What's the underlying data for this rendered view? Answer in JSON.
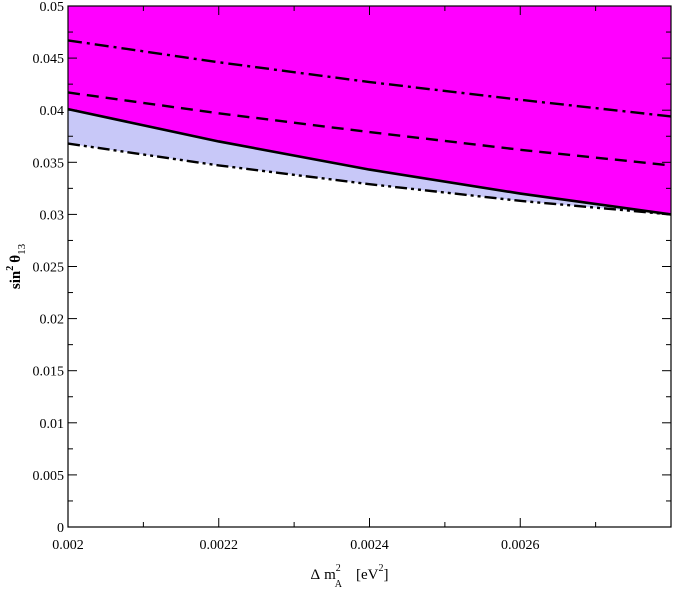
{
  "chart_data": {
    "type": "area",
    "xlim": [
      0.002,
      0.0028
    ],
    "ylim": [
      0,
      0.05
    ],
    "x_ticks": [
      "0.002",
      "0.0022",
      "0.0024",
      "0.0026"
    ],
    "x_tick_values": [
      0.002,
      0.0022,
      0.0024,
      0.0026
    ],
    "y_ticks": [
      "0",
      "0.005",
      "0.01",
      "0.015",
      "0.02",
      "0.025",
      "0.03",
      "0.035",
      "0.04",
      "0.045",
      "0.05"
    ],
    "y_tick_values": [
      0,
      0.005,
      0.01,
      0.015,
      0.02,
      0.025,
      0.03,
      0.035,
      0.04,
      0.045,
      0.05
    ],
    "grid": false,
    "colors": {
      "upper_region": "#ff00ff",
      "band_region": "#c8c8f8",
      "lines": "#000000"
    },
    "series": [
      {
        "style": "solid",
        "x": [
          0.002,
          0.0022,
          0.0024,
          0.0026,
          0.0028
        ],
        "y": [
          0.0401,
          0.037,
          0.0343,
          0.032,
          0.03
        ]
      },
      {
        "style": "dash-dot",
        "x": [
          0.002,
          0.0022,
          0.0024,
          0.0026,
          0.0028
        ],
        "y": [
          0.0467,
          0.0446,
          0.0427,
          0.041,
          0.0394
        ]
      },
      {
        "style": "dashed",
        "x": [
          0.002,
          0.0022,
          0.0024,
          0.0026,
          0.0028
        ],
        "y": [
          0.0417,
          0.0397,
          0.0379,
          0.0362,
          0.0347
        ]
      },
      {
        "style": "dash-dot-dot",
        "x": [
          0.002,
          0.0022,
          0.0024,
          0.0026,
          0.0028
        ],
        "y": [
          0.0368,
          0.0347,
          0.0329,
          0.0313,
          0.03
        ]
      }
    ],
    "regions": [
      {
        "fill": "upper_region",
        "between": [
          "solid",
          "top"
        ]
      },
      {
        "fill": "band_region",
        "between": [
          "dash-dot-dot",
          "solid"
        ]
      }
    ],
    "xlabel": {
      "symbol": "Δ",
      "main": "m",
      "sup": "2",
      "sub": "A",
      "unit_open": "[eV",
      "unit_sup": "2",
      "unit_close": "]"
    },
    "ylabel": {
      "main": "sin",
      "sup": "2",
      "theta": "θ",
      "sub": "13"
    }
  }
}
